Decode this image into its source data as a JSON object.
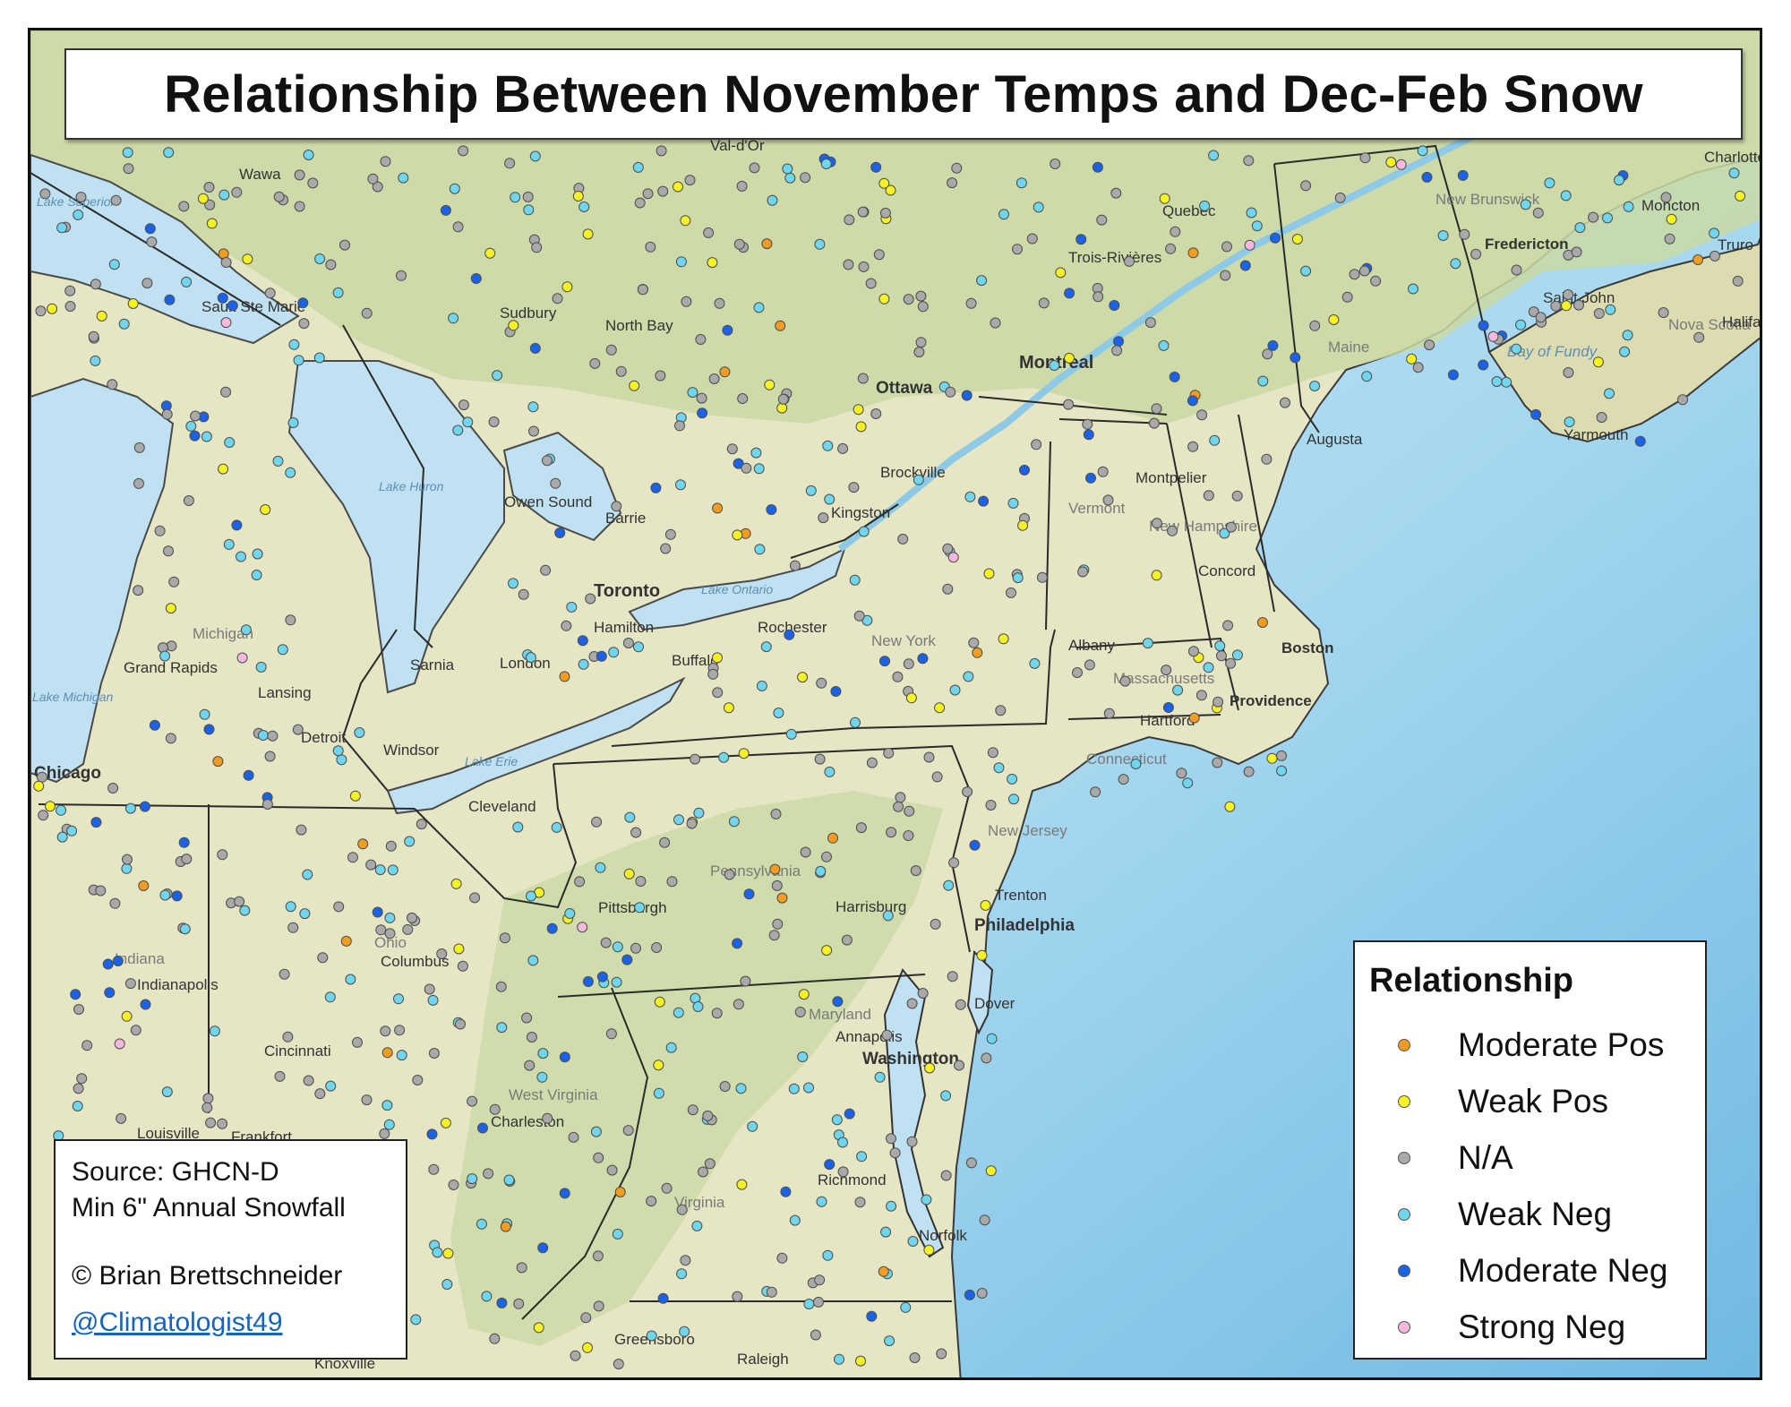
{
  "title": "Relationship Between November Temps and Dec-Feb Snow",
  "legend": {
    "title": "Relationship",
    "items": [
      {
        "label": "Moderate Pos",
        "color": "#f39c1f"
      },
      {
        "label": "Weak Pos",
        "color": "#f7f224"
      },
      {
        "label": "N/A",
        "color": "#a9a9a9"
      },
      {
        "label": "Weak Neg",
        "color": "#6fd6ee"
      },
      {
        "label": "Moderate Neg",
        "color": "#1a63e8"
      },
      {
        "label": "Strong Neg",
        "color": "#f6b8dc"
      }
    ]
  },
  "source": {
    "line1": "Source: GHCN-D",
    "line2": "Min 6\" Annual Snowfall",
    "credit": "© Brian Brettschneider",
    "handle": "@Climatologist49"
  },
  "map_labels": {
    "cities": [
      "Montreal",
      "Ottawa",
      "Toronto",
      "Hamilton",
      "London",
      "Barrie",
      "Kingston",
      "Rochester",
      "Buffalo",
      "Albany",
      "Boston",
      "Providence",
      "Hartford",
      "Concord",
      "Augusta",
      "Montpelier",
      "Quebec",
      "Trois-Rivières",
      "Fredericton",
      "Saint John",
      "Moncton",
      "Truro",
      "Halifax",
      "Yarmouth",
      "Charlottetown",
      "Sudbury",
      "North Bay",
      "Owen Sound",
      "Sault Ste Marie",
      "Wawa",
      "Val-d'Or",
      "Brockville",
      "Sarnia",
      "Windsor",
      "Detroit",
      "Lansing",
      "Grand Rapids",
      "Chicago",
      "Cleveland",
      "Pittsburgh",
      "Columbus",
      "Indianapolis",
      "Cincinnati",
      "Louisville",
      "Frankfort",
      "Charleston",
      "Harrisburg",
      "Philadelphia",
      "Trenton",
      "Dover",
      "Annapolis",
      "Washington",
      "Richmond",
      "Norfolk",
      "Greensboro",
      "Raleigh",
      "Knoxville"
    ],
    "regions": [
      "Michigan",
      "Ohio",
      "Indiana",
      "Pennsylvania",
      "New York",
      "New Jersey",
      "Maryland",
      "West Virginia",
      "Virginia",
      "Vermont",
      "New Hampshire",
      "Maine",
      "Massachusetts",
      "Connecticut",
      "New Brunswick",
      "Nova Scotia"
    ],
    "water": [
      "Lake Superior",
      "Lake Huron",
      "Lake Michigan",
      "Lake Erie",
      "Lake Ontario",
      "Bay of Fundy"
    ]
  }
}
